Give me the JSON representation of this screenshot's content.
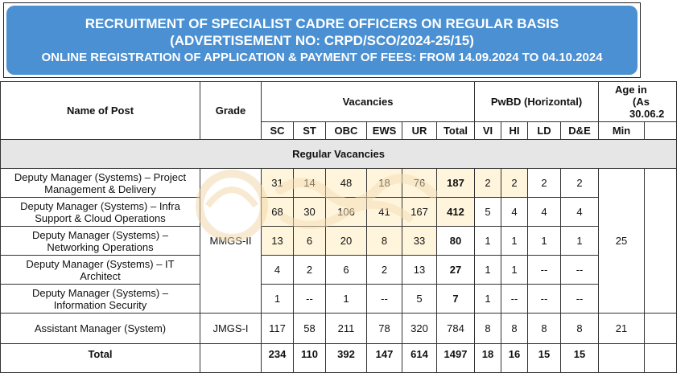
{
  "banner": {
    "line1": "RECRUITMENT OF SPECIALIST CADRE OFFICERS ON REGULAR BASIS",
    "line2": "(ADVERTISEMENT NO: CRPD/SCO/2024-25/15)",
    "line3": "ONLINE REGISTRATION OF APPLICATION & PAYMENT OF FEES: FROM 14.09.2024 TO 04.10.2024",
    "background": "#4a90d2"
  },
  "table": {
    "headers": {
      "name_of_post": "Name of Post",
      "grade": "Grade",
      "vacancies": "Vacancies",
      "pwbd": "PwBD (Horizontal)",
      "age_line1": "Age in",
      "age_line2": "(As",
      "age_line3": "30.06.2",
      "vac_cols": [
        "SC",
        "ST",
        "OBC",
        "EWS",
        "UR",
        "Total"
      ],
      "pwbd_cols": [
        "VI",
        "HI",
        "LD",
        "D&E"
      ],
      "age_min": "Min"
    },
    "section_regular": "Regular Vacancies",
    "rows": [
      {
        "post_line1": "Deputy Manager (Systems) – Project",
        "post_line2": "Management & Delivery",
        "sc": "31",
        "st": "14",
        "obc": "48",
        "ews": "18",
        "ur": "76",
        "total": "187",
        "vi": "2",
        "hi": "2",
        "ld": "2",
        "de": "2"
      },
      {
        "post_line1": "Deputy Manager (Systems) – Infra",
        "post_line2": "Support & Cloud Operations",
        "sc": "68",
        "st": "30",
        "obc": "106",
        "ews": "41",
        "ur": "167",
        "total": "412",
        "vi": "5",
        "hi": "4",
        "ld": "4",
        "de": "4"
      },
      {
        "post_line1": "Deputy Manager (Systems) –",
        "post_line2": "Networking Operations",
        "sc": "13",
        "st": "6",
        "obc": "20",
        "ews": "8",
        "ur": "33",
        "total": "80",
        "vi": "1",
        "hi": "1",
        "ld": "1",
        "de": "1"
      },
      {
        "post_line1": "Deputy Manager (Systems) – IT",
        "post_line2": "Architect",
        "sc": "4",
        "st": "2",
        "obc": "6",
        "ews": "2",
        "ur": "13",
        "total": "27",
        "vi": "1",
        "hi": "1",
        "ld": "--",
        "de": "--"
      },
      {
        "post_line1": "Deputy Manager (Systems) –",
        "post_line2": "Information Security",
        "sc": "1",
        "st": "--",
        "obc": "1",
        "ews": "--",
        "ur": "5",
        "total": "7",
        "vi": "1",
        "hi": "--",
        "ld": "--",
        "de": "--"
      }
    ],
    "grade_mmgs": "MMGS-II",
    "age_mmgs": "25",
    "row_am": {
      "post": "Assistant Manager (System)",
      "grade": "JMGS-I",
      "sc": "117",
      "st": "58",
      "obc": "211",
      "ews": "78",
      "ur": "320",
      "total": "784",
      "vi": "8",
      "hi": "8",
      "ld": "8",
      "de": "8",
      "age": "21"
    },
    "total_row": {
      "label": "Total",
      "sc": "234",
      "st": "110",
      "obc": "392",
      "ews": "147",
      "ur": "614",
      "total": "1497",
      "vi": "18",
      "hi": "16",
      "ld": "15",
      "de": "15"
    }
  },
  "colors": {
    "border": "#333333",
    "section_bg": "#e6e6e6",
    "highlight": "#fff5dc"
  }
}
